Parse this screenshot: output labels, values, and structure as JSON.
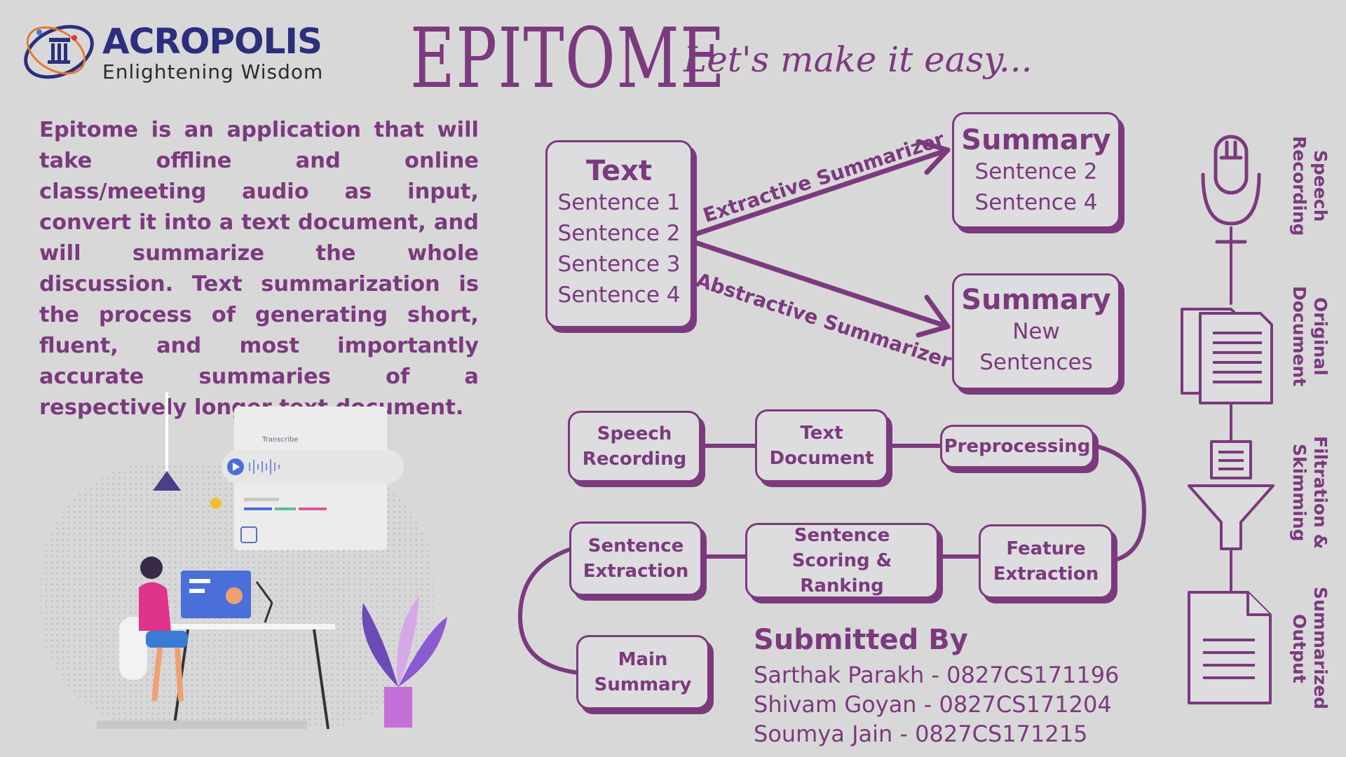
{
  "header": {
    "logo_name": "ACROPOLIS",
    "logo_tagline": "Enlightening Wisdom",
    "title": "EPITOME",
    "tagline": "Let's make it easy..."
  },
  "intro": "Epitome is an application that will take offline and online class/meeting audio as input, convert it into a text document, and will summarize the whole discussion. Text summarization is the process of generating short, fluent, and most importantly accurate summaries of a respectively longer text document.",
  "illustration": {
    "transcribe_label": "Transcribe"
  },
  "summarization": {
    "text_box": {
      "heading": "Text",
      "lines": [
        "Sentence 1",
        "Sentence 2",
        "Sentence 3",
        "Sentence 4"
      ]
    },
    "extractive_label": "Extractive Summarizer",
    "abstractive_label": "Abstractive Summarizer",
    "extractive_box": {
      "heading": "Summary",
      "lines": [
        "Sentence 2",
        "Sentence 4"
      ]
    },
    "abstractive_box": {
      "heading": "Summary",
      "lines": [
        "New",
        "Sentences"
      ]
    }
  },
  "pipeline": {
    "speech_recording": [
      "Speech",
      "Recording"
    ],
    "text_document": [
      "Text",
      "Document"
    ],
    "preprocessing": [
      "Preprocessing"
    ],
    "feature_extraction": [
      "Feature",
      "Extraction"
    ],
    "sentence_scoring": [
      "Sentence",
      "Scoring & Ranking"
    ],
    "sentence_extraction": [
      "Sentence",
      "Extraction"
    ],
    "main_summary": [
      "Main",
      "Summary"
    ]
  },
  "side_flow": {
    "speech": "Speech Recording",
    "original": "Original Document",
    "filtration": "Filtration & Skimming",
    "summarized": "Summarized Output"
  },
  "credits": {
    "heading": "Submitted By",
    "members": [
      "Sarthak Parakh - 0827CS171196",
      "Shivam Goyan - 0827CS171204",
      "Soumya Jain - 0827CS171215"
    ]
  },
  "colors": {
    "accent": "#7b3a7e",
    "background": "#d9d8d9",
    "logo_navy": "#2c2f7c"
  }
}
